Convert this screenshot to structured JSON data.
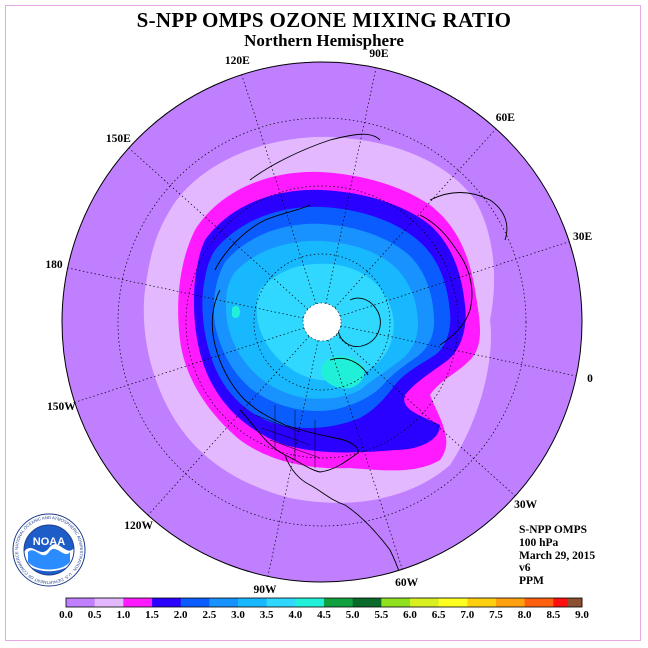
{
  "title": "S-NPP OMPS OZONE MIXING RATIO",
  "subtitle": "Northern Hemisphere",
  "longitude_labels": [
    {
      "text": "90E",
      "angle": 90
    },
    {
      "text": "60E",
      "angle": 60
    },
    {
      "text": "30E",
      "angle": 30
    },
    {
      "text": "0",
      "angle": 0
    },
    {
      "text": "30W",
      "angle": -30
    },
    {
      "text": "60W",
      "angle": -60
    },
    {
      "text": "90W",
      "angle": -90
    },
    {
      "text": "120W",
      "angle": -120
    },
    {
      "text": "150W",
      "angle": -150
    },
    {
      "text": "180",
      "angle": 180
    },
    {
      "text": "150E",
      "angle": 150
    },
    {
      "text": "120E",
      "angle": 120
    }
  ],
  "info": {
    "instrument": "S-NPP OMPS",
    "level": "100 hPa",
    "date": "March 29, 2015",
    "version": "v6",
    "units": "PPM"
  },
  "logo": {
    "name": "NOAA",
    "ring_text": "NATIONAL OCEANIC AND ATMOSPHERIC ADMINISTRATION · U.S. DEPARTMENT OF COMMERCE"
  },
  "colorbar": {
    "ticks": [
      "0.0",
      "0.5",
      "1.0",
      "1.5",
      "2.0",
      "2.5",
      "3.0",
      "3.5",
      "4.0",
      "4.5",
      "5.0",
      "5.5",
      "6.0",
      "6.5",
      "7.0",
      "7.5",
      "8.0",
      "8.5",
      "9.0"
    ],
    "colors": [
      "#bf7fff",
      "#e3b8ff",
      "#ff1aff",
      "#2a00ff",
      "#0a5cff",
      "#1892ff",
      "#18b8ff",
      "#30d8ff",
      "#20f0d8",
      "#10a040",
      "#0a6a2a",
      "#90e020",
      "#d8f020",
      "#ffff20",
      "#ffd010",
      "#ffa010",
      "#ff6010",
      "#ff1010",
      "#8a5030"
    ]
  },
  "legend_colors": {
    "background": "#bf7fff",
    "light": "#e3b8ff",
    "magenta": "#ff1aff",
    "blue": "#2a00ff"
  }
}
